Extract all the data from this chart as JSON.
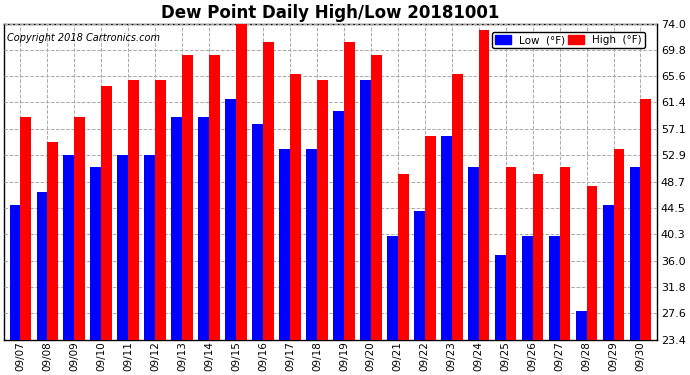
{
  "title": "Dew Point Daily High/Low 20181001",
  "copyright": "Copyright 2018 Cartronics.com",
  "dates": [
    "09/07",
    "09/08",
    "09/09",
    "09/10",
    "09/11",
    "09/12",
    "09/13",
    "09/14",
    "09/15",
    "09/16",
    "09/17",
    "09/18",
    "09/19",
    "09/20",
    "09/21",
    "09/22",
    "09/23",
    "09/24",
    "09/25",
    "09/26",
    "09/27",
    "09/28",
    "09/29",
    "09/30"
  ],
  "low": [
    45,
    47,
    53,
    51,
    53,
    53,
    59,
    59,
    62,
    58,
    54,
    54,
    60,
    65,
    40,
    44,
    56,
    51,
    37,
    40,
    40,
    28,
    45,
    51
  ],
  "high": [
    59,
    55,
    59,
    64,
    65,
    65,
    69,
    69,
    74,
    71,
    66,
    65,
    71,
    69,
    50,
    56,
    66,
    73,
    51,
    50,
    51,
    48,
    54,
    62
  ],
  "ymin": 23.4,
  "ymax": 74.0,
  "yticks": [
    23.4,
    27.6,
    31.8,
    36.0,
    40.3,
    44.5,
    48.7,
    52.9,
    57.1,
    61.4,
    65.6,
    69.8,
    74.0
  ],
  "low_color": "#0000FF",
  "high_color": "#FF0000",
  "bg_color": "#FFFFFF",
  "grid_color": "#AAAAAA",
  "bar_width": 0.4,
  "legend_low_label": "Low  (°F)",
  "legend_high_label": "High  (°F)",
  "figwidth": 6.9,
  "figheight": 3.75,
  "dpi": 100
}
